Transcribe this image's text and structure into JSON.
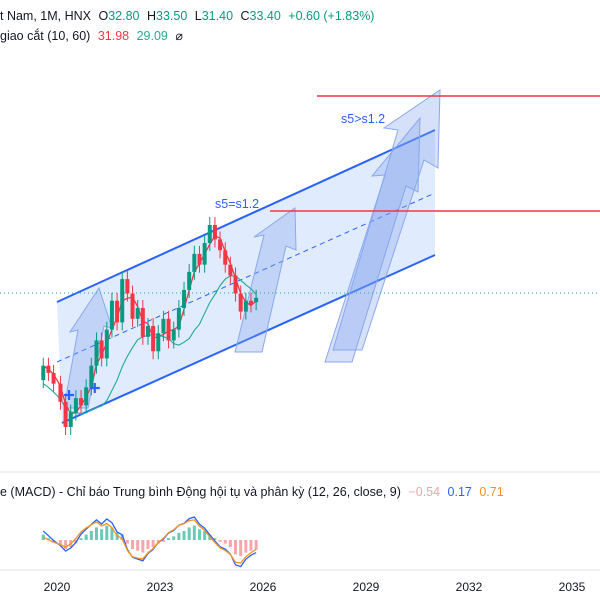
{
  "header": {
    "symbol": "t Nam, 1M, HNX",
    "open_label": "O",
    "open": "32.80",
    "high_label": "H",
    "high": "33.50",
    "low_label": "L",
    "low": "31.40",
    "close_label": "C",
    "close": "33.40",
    "change": "+0.60 (+1.83%)",
    "ma_name": "giao cắt (10, 60)",
    "ma_fast": "31.98",
    "ma_slow": "29.09",
    "eye_glyph": "⌀"
  },
  "macd_header": {
    "name": "e (MACD) - Chỉ báo Trung bình Động hội tụ và phân kỳ (12, 26, close, 9)",
    "hist": "−0.54",
    "macd": "0.17",
    "signal": "0.71"
  },
  "annotations": {
    "target1": "s5=s1.2",
    "target2": "s5>s1.2"
  },
  "colors": {
    "up": "#089981",
    "down": "#f23645",
    "channel": "#2962ff",
    "channel_fill": "#d6e4fc",
    "ma_fast": "#f23645",
    "ma_slow": "#22ab94",
    "macd": "#2962ff",
    "signal": "#f7931a",
    "price_line": "#22ab94"
  },
  "chart_data": {
    "type": "candlestick",
    "timeframe": "1M",
    "x_ticks": [
      "2020",
      "2023",
      "2026",
      "2029",
      "2032",
      "2035"
    ],
    "price_samples": [
      {
        "x": 2019.6,
        "o": 22.0,
        "c": 24.0
      },
      {
        "x": 2019.75,
        "o": 24.0,
        "c": 23.0
      },
      {
        "x": 2019.9,
        "o": 23.0,
        "c": 21.5
      },
      {
        "x": 2020.1,
        "o": 21.5,
        "c": 19.0
      },
      {
        "x": 2020.25,
        "o": 19.0,
        "c": 15.5
      },
      {
        "x": 2020.4,
        "o": 15.5,
        "c": 17.5
      },
      {
        "x": 2020.55,
        "o": 17.5,
        "c": 19.5
      },
      {
        "x": 2020.7,
        "o": 19.5,
        "c": 18.5
      },
      {
        "x": 2020.85,
        "o": 18.5,
        "c": 21.0
      },
      {
        "x": 2021.0,
        "o": 21.0,
        "c": 24.0
      },
      {
        "x": 2021.15,
        "o": 24.0,
        "c": 27.5
      },
      {
        "x": 2021.3,
        "o": 27.5,
        "c": 25.0
      },
      {
        "x": 2021.45,
        "o": 25.0,
        "c": 29.0
      },
      {
        "x": 2021.6,
        "o": 29.0,
        "c": 33.0
      },
      {
        "x": 2021.75,
        "o": 33.0,
        "c": 30.0
      },
      {
        "x": 2021.9,
        "o": 30.0,
        "c": 36.0
      },
      {
        "x": 2022.05,
        "o": 36.0,
        "c": 34.0
      },
      {
        "x": 2022.2,
        "o": 34.0,
        "c": 30.5
      },
      {
        "x": 2022.35,
        "o": 30.5,
        "c": 32.0
      },
      {
        "x": 2022.5,
        "o": 32.0,
        "c": 28.0
      },
      {
        "x": 2022.65,
        "o": 28.0,
        "c": 29.5
      },
      {
        "x": 2022.8,
        "o": 29.5,
        "c": 26.0
      },
      {
        "x": 2022.95,
        "o": 26.0,
        "c": 28.5
      },
      {
        "x": 2023.1,
        "o": 28.5,
        "c": 30.5
      },
      {
        "x": 2023.25,
        "o": 30.5,
        "c": 27.5
      },
      {
        "x": 2023.4,
        "o": 27.5,
        "c": 29.0
      },
      {
        "x": 2023.55,
        "o": 29.0,
        "c": 32.0
      },
      {
        "x": 2023.7,
        "o": 32.0,
        "c": 34.5
      },
      {
        "x": 2023.85,
        "o": 34.5,
        "c": 37.0
      },
      {
        "x": 2024.0,
        "o": 37.0,
        "c": 39.5
      },
      {
        "x": 2024.15,
        "o": 39.5,
        "c": 38.0
      },
      {
        "x": 2024.3,
        "o": 38.0,
        "c": 41.0
      },
      {
        "x": 2024.45,
        "o": 41.0,
        "c": 43.5
      },
      {
        "x": 2024.6,
        "o": 43.5,
        "c": 41.5
      },
      {
        "x": 2024.75,
        "o": 41.5,
        "c": 40.0
      },
      {
        "x": 2024.9,
        "o": 40.0,
        "c": 38.0
      },
      {
        "x": 2025.05,
        "o": 38.0,
        "c": 36.5
      },
      {
        "x": 2025.2,
        "o": 36.5,
        "c": 34.0
      },
      {
        "x": 2025.35,
        "o": 34.0,
        "c": 31.5
      },
      {
        "x": 2025.5,
        "o": 31.5,
        "c": 33.0
      },
      {
        "x": 2025.65,
        "o": 33.0,
        "c": 32.5
      },
      {
        "x": 2025.8,
        "o": 32.8,
        "c": 33.4
      }
    ],
    "macd_hist_samples": [
      {
        "x": 2019.6,
        "v": 0.3
      },
      {
        "x": 2019.75,
        "v": 0.1
      },
      {
        "x": 2019.9,
        "v": -0.1
      },
      {
        "x": 2020.1,
        "v": -0.3
      },
      {
        "x": 2020.25,
        "v": -0.5
      },
      {
        "x": 2020.4,
        "v": -0.4
      },
      {
        "x": 2020.55,
        "v": -0.2
      },
      {
        "x": 2020.7,
        "v": 0.1
      },
      {
        "x": 2020.85,
        "v": 0.3
      },
      {
        "x": 2021.0,
        "v": 0.5
      },
      {
        "x": 2021.15,
        "v": 0.7
      },
      {
        "x": 2021.3,
        "v": 0.6
      },
      {
        "x": 2021.45,
        "v": 0.8
      },
      {
        "x": 2021.6,
        "v": 0.7
      },
      {
        "x": 2021.75,
        "v": 0.4
      },
      {
        "x": 2021.9,
        "v": 0.3
      },
      {
        "x": 2022.05,
        "v": -0.2
      },
      {
        "x": 2022.2,
        "v": -0.5
      },
      {
        "x": 2022.35,
        "v": -0.6
      },
      {
        "x": 2022.5,
        "v": -0.7
      },
      {
        "x": 2022.65,
        "v": -0.5
      },
      {
        "x": 2022.8,
        "v": -0.4
      },
      {
        "x": 2022.95,
        "v": -0.2
      },
      {
        "x": 2023.1,
        "v": -0.1
      },
      {
        "x": 2023.25,
        "v": 0.1
      },
      {
        "x": 2023.4,
        "v": 0.2
      },
      {
        "x": 2023.55,
        "v": 0.4
      },
      {
        "x": 2023.7,
        "v": 0.5
      },
      {
        "x": 2023.85,
        "v": 0.7
      },
      {
        "x": 2024.0,
        "v": 0.8
      },
      {
        "x": 2024.15,
        "v": 0.6
      },
      {
        "x": 2024.3,
        "v": 0.5
      },
      {
        "x": 2024.45,
        "v": 0.3
      },
      {
        "x": 2024.6,
        "v": 0.1
      },
      {
        "x": 2024.75,
        "v": -0.1
      },
      {
        "x": 2024.9,
        "v": -0.2
      },
      {
        "x": 2025.05,
        "v": -0.4
      },
      {
        "x": 2025.2,
        "v": -0.8
      },
      {
        "x": 2025.35,
        "v": -0.9
      },
      {
        "x": 2025.5,
        "v": -0.7
      },
      {
        "x": 2025.65,
        "v": -0.6
      },
      {
        "x": 2025.8,
        "v": -0.54
      }
    ]
  }
}
